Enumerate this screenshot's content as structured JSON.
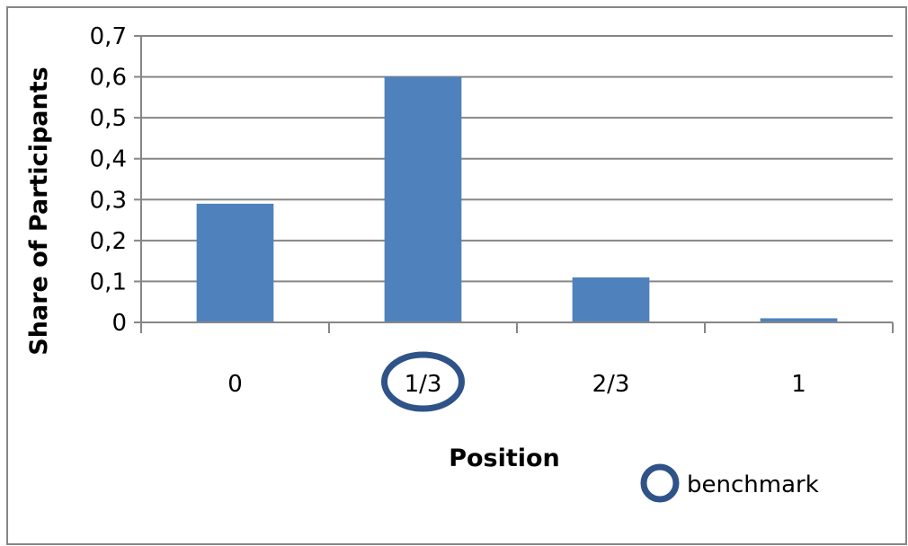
{
  "colors": {
    "bar": "#4f81bd",
    "gridline": "#868686",
    "axis": "#868686",
    "frame": "#868686",
    "benchmark_marker": "#2f5389"
  },
  "chart_data": {
    "type": "bar",
    "categories": [
      "0",
      "1/3",
      "2/3",
      "1"
    ],
    "values": [
      0.29,
      0.6,
      0.11,
      0.01
    ],
    "ylim": [
      0,
      0.7
    ],
    "yticks": [
      "0",
      "0,1",
      "0,2",
      "0,3",
      "0,4",
      "0,5",
      "0,6",
      "0,7"
    ],
    "xlabel": "Position",
    "ylabel": "Share of Participants",
    "grid": true,
    "highlighted_category": "1/3",
    "legend": {
      "position": "bottom-right",
      "label": "benchmark",
      "marker": "circle-outline"
    }
  }
}
